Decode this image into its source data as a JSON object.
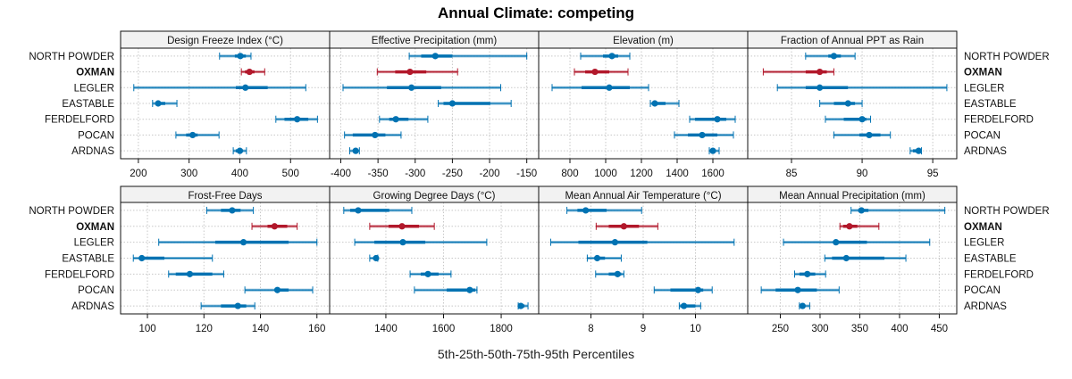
{
  "chart_data": {
    "type": "dotplot-percentiles",
    "title": "Annual Climate: competing",
    "xlabel": "5th-25th-50th-75th-95th Percentiles",
    "ylabel": "",
    "grid": true,
    "sites": [
      "NORTH POWDER",
      "OXMAN",
      "LEGLER",
      "EASTABLE",
      "FERDELFORD",
      "POCAN",
      "ARDNAS"
    ],
    "highlight_site": "OXMAN",
    "colors": {
      "default": "#0072b2",
      "highlight": "#b2182b",
      "grid": "#c8c8c8",
      "strip": "#f2f2f2"
    },
    "percentile_labels": [
      "5th",
      "25th",
      "50th",
      "75th",
      "95th"
    ],
    "panels": [
      {
        "title": "Design Freeze Index (°C)",
        "xlim": [
          165,
          577
        ],
        "ticks": [
          200,
          300,
          400,
          500
        ],
        "values": {
          "NORTH POWDER": [
            360,
            390,
            401,
            412,
            422
          ],
          "OXMAN": [
            403,
            410,
            419,
            429,
            449
          ],
          "LEGLER": [
            191,
            392,
            411,
            455,
            530
          ],
          "EASTABLE": [
            228,
            236,
            239,
            253,
            276
          ],
          "FERDELFORD": [
            471,
            488,
            513,
            535,
            553
          ],
          "POCAN": [
            274,
            294,
            307,
            317,
            359
          ],
          "ARDNAS": [
            387,
            392,
            400,
            406,
            413
          ]
        }
      },
      {
        "title": "Effective Precipitation (mm)",
        "xlim": [
          -415,
          -134
        ],
        "ticks": [
          -400,
          -350,
          -300,
          -250,
          -200,
          -150
        ],
        "values": {
          "NORTH POWDER": [
            -308,
            -292,
            -273,
            -250,
            -150
          ],
          "OXMAN": [
            -351,
            -327,
            -307,
            -285,
            -243
          ],
          "LEGLER": [
            -397,
            -338,
            -305,
            -265,
            -185
          ],
          "EASTABLE": [
            -269,
            -262,
            -250,
            -199,
            -171
          ],
          "FERDELFORD": [
            -348,
            -335,
            -326,
            -309,
            -283
          ],
          "POCAN": [
            -395,
            -384,
            -354,
            -340,
            -319
          ],
          "ARDNAS": [
            -388,
            -383,
            -380,
            -377,
            -375
          ]
        }
      },
      {
        "title": "Elevation (m)",
        "xlim": [
          625,
          1795
        ],
        "ticks": [
          800,
          1000,
          1200,
          1400,
          1600
        ],
        "values": {
          "NORTH POWDER": [
            860,
            985,
            1035,
            1070,
            1135
          ],
          "OXMAN": [
            825,
            885,
            940,
            1020,
            1125
          ],
          "LEGLER": [
            700,
            865,
            1020,
            1135,
            1240
          ],
          "EASTABLE": [
            1250,
            1260,
            1275,
            1335,
            1410
          ],
          "FERDELFORD": [
            1470,
            1500,
            1625,
            1675,
            1725
          ],
          "POCAN": [
            1385,
            1460,
            1540,
            1625,
            1715
          ],
          "ARDNAS": [
            1580,
            1590,
            1600,
            1610,
            1635
          ]
        }
      },
      {
        "title": "Fraction of Annual PPT as Rain",
        "xlim": [
          81.9,
          96.7
        ],
        "ticks": [
          85,
          90,
          95
        ],
        "values": {
          "NORTH POWDER": [
            86,
            87.6,
            88,
            88.5,
            89.5
          ],
          "OXMAN": [
            83,
            86,
            87,
            87.5,
            88
          ],
          "LEGLER": [
            84,
            86,
            87,
            89,
            96
          ],
          "EASTABLE": [
            87,
            88,
            89,
            89.5,
            90
          ],
          "FERDELFORD": [
            87.4,
            88.7,
            90,
            90.3,
            90.6
          ],
          "POCAN": [
            88,
            89.8,
            90.5,
            91.3,
            92
          ],
          "ARDNAS": [
            93.4,
            93.6,
            94,
            94.1,
            94.2
          ]
        }
      },
      {
        "title": "Frost-Free Days",
        "xlim": [
          90.5,
          164.5
        ],
        "ticks": [
          100,
          120,
          140,
          160
        ],
        "values": {
          "NORTH POWDER": [
            121,
            126,
            130,
            133,
            137.5
          ],
          "OXMAN": [
            137,
            142.5,
            145,
            149.5,
            153
          ],
          "LEGLER": [
            104,
            124,
            134,
            150,
            160
          ],
          "EASTABLE": [
            95,
            97,
            98,
            106,
            123
          ],
          "FERDELFORD": [
            107.5,
            110,
            115,
            123,
            127
          ],
          "POCAN": [
            134.5,
            145,
            146,
            150,
            158.5
          ],
          "ARDNAS": [
            119,
            126,
            132,
            135,
            138
          ]
        }
      },
      {
        "title": "Growing Degree Days (°C)",
        "xlim": [
          1205,
          1930
        ],
        "ticks": [
          1400,
          1600,
          1800
        ],
        "values": {
          "NORTH POWDER": [
            1254,
            1276,
            1304,
            1412,
            1490
          ],
          "OXMAN": [
            1344,
            1409,
            1456,
            1515,
            1568
          ],
          "LEGLER": [
            1292,
            1360,
            1459,
            1537,
            1750
          ],
          "EASTABLE": [
            1344,
            1357,
            1366,
            1369,
            1372
          ],
          "FERDELFORD": [
            1484,
            1521,
            1546,
            1583,
            1626
          ],
          "POCAN": [
            1499,
            1611,
            1691,
            1710,
            1716
          ],
          "ARDNAS": [
            1859,
            1865,
            1868,
            1881,
            1893
          ]
        }
      },
      {
        "title": "Mean Annual Air Temperature (°C)",
        "xlim": [
          7.0,
          11.0
        ],
        "ticks": [
          8,
          9,
          10
        ],
        "values": {
          "NORTH POWDER": [
            7.54,
            7.74,
            7.9,
            8.3,
            8.97
          ],
          "OXMAN": [
            8.1,
            8.34,
            8.63,
            8.92,
            9.28
          ],
          "LEGLER": [
            7.23,
            7.76,
            8.46,
            9.08,
            10.74
          ],
          "EASTABLE": [
            7.93,
            8.07,
            8.12,
            8.27,
            8.58
          ],
          "FERDELFORD": [
            8.09,
            8.34,
            8.51,
            8.58,
            8.63
          ],
          "POCAN": [
            9.21,
            9.52,
            10.05,
            10.15,
            10.32
          ],
          "ARDNAS": [
            9.69,
            9.71,
            9.78,
            10.0,
            10.1
          ]
        }
      },
      {
        "title": "Mean Annual Precipitation (mm)",
        "xlim": [
          209,
          472
        ],
        "ticks": [
          250,
          300,
          350,
          400,
          450
        ],
        "values": {
          "NORTH POWDER": [
            339,
            348,
            352,
            361,
            457
          ],
          "OXMAN": [
            325,
            329,
            337,
            347,
            374
          ],
          "LEGLER": [
            254,
            317,
            320,
            359,
            438
          ],
          "EASTABLE": [
            306,
            315,
            333,
            381,
            408
          ],
          "FERDELFORD": [
            268,
            274,
            284,
            294,
            307
          ],
          "POCAN": [
            226,
            244,
            272,
            296,
            324
          ],
          "ARDNAS": [
            274,
            277,
            278,
            281,
            287
          ]
        }
      }
    ]
  }
}
